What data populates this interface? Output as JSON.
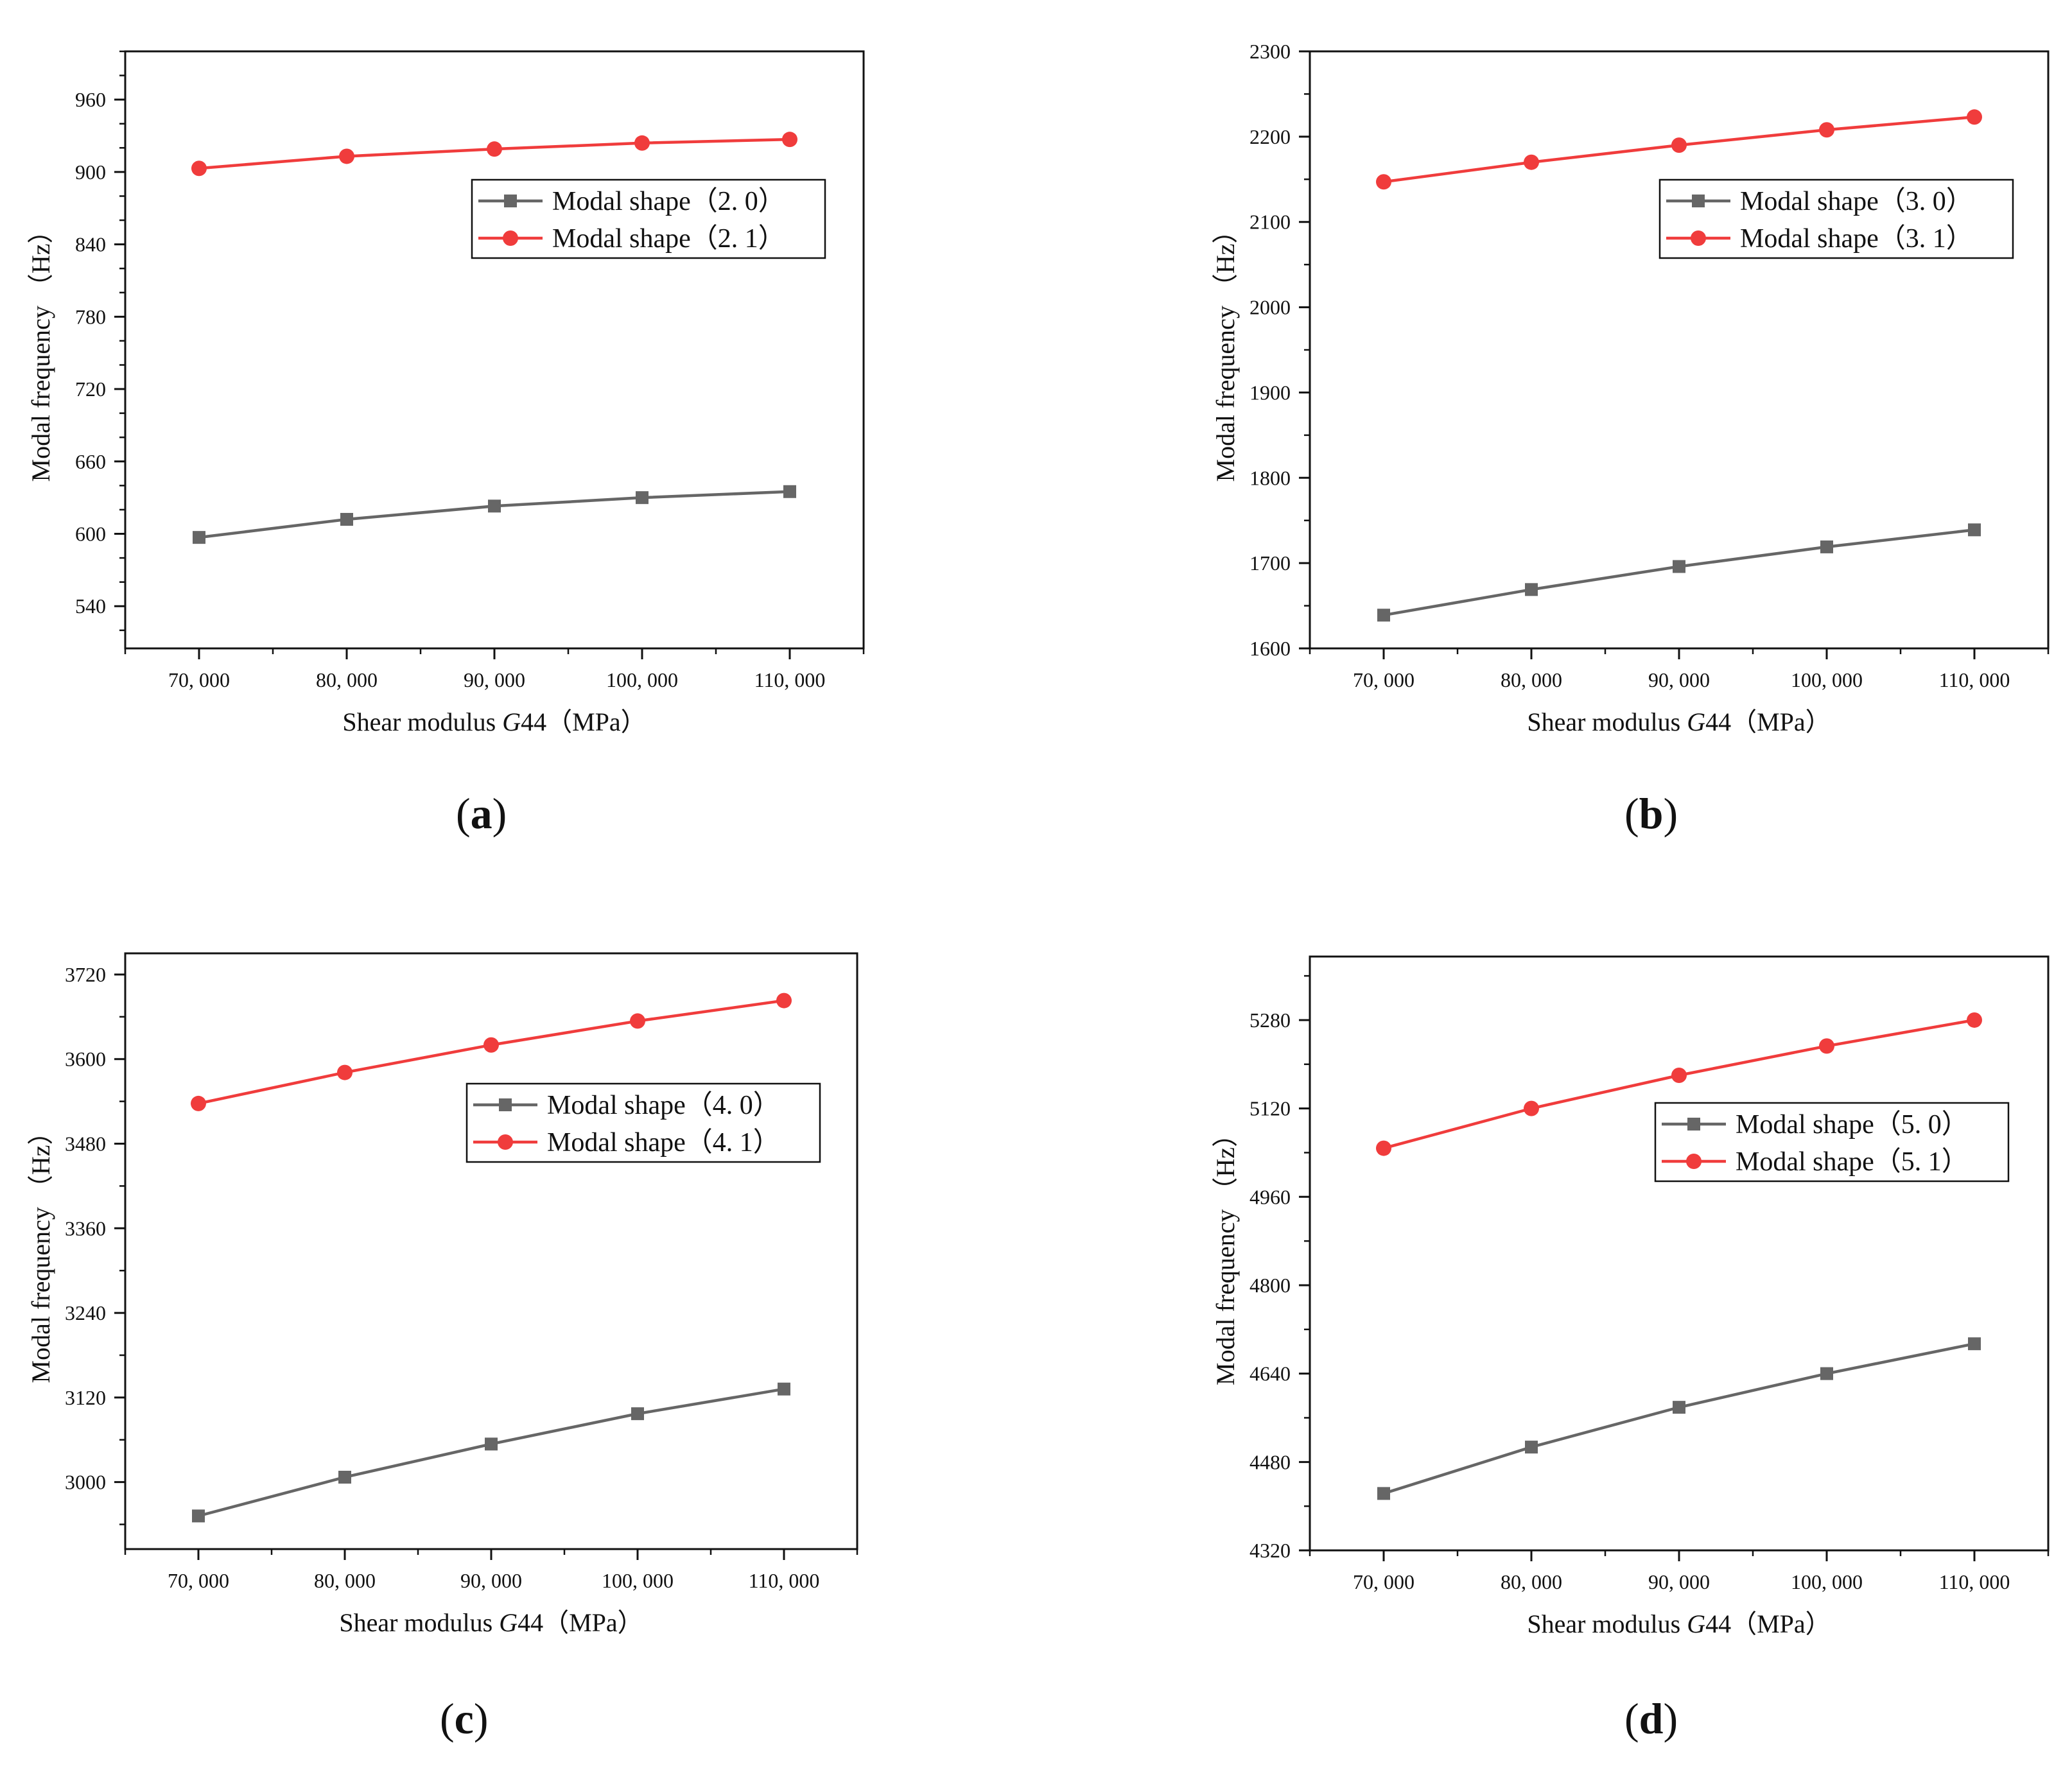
{
  "chart_data": [
    {
      "id": "a",
      "type": "line",
      "panel_label": "a",
      "xlabel_prefix": "Shear modulus ",
      "xlabel_var": "G",
      "xlabel_suffix": "44（MPa）",
      "ylabel": "Modal frequency （Hz）",
      "x": [
        70000,
        80000,
        90000,
        100000,
        110000
      ],
      "x_tick_labels": [
        "70, 000",
        "80, 000",
        "90, 000",
        "100, 000",
        "110, 000"
      ],
      "xlim": [
        65000,
        115000
      ],
      "ylim": [
        505,
        1000
      ],
      "y_ticks": [
        540,
        600,
        660,
        720,
        780,
        840,
        900,
        960
      ],
      "y_minor_step": 20,
      "legend_position": "upper-right",
      "series": [
        {
          "name": "Modal shape（2. 0）",
          "color": "#666666",
          "marker": "square",
          "values": [
            597,
            612,
            623,
            630,
            635
          ]
        },
        {
          "name": "Modal shape（2. 1）",
          "color": "#f03c3c",
          "marker": "circle",
          "values": [
            903,
            913,
            919,
            924,
            927
          ]
        }
      ]
    },
    {
      "id": "b",
      "type": "line",
      "panel_label": "b",
      "xlabel_prefix": "Shear modulus ",
      "xlabel_var": "G",
      "xlabel_suffix": "44（MPa）",
      "ylabel": "Modal frequency （Hz）",
      "x": [
        70000,
        80000,
        90000,
        100000,
        110000
      ],
      "x_tick_labels": [
        "70, 000",
        "80, 000",
        "90, 000",
        "100, 000",
        "110, 000"
      ],
      "xlim": [
        65000,
        115000
      ],
      "ylim": [
        1600,
        2300
      ],
      "y_ticks": [
        1600,
        1700,
        1800,
        1900,
        2000,
        2100,
        2200,
        2300
      ],
      "y_minor_step": 50,
      "legend_position": "upper-right",
      "series": [
        {
          "name": "Modal shape（3. 0）",
          "color": "#666666",
          "marker": "square",
          "values": [
            1639,
            1669,
            1696,
            1719,
            1739
          ]
        },
        {
          "name": "Modal shape（3. 1）",
          "color": "#f03c3c",
          "marker": "circle",
          "values": [
            2147,
            2170,
            2190,
            2208,
            2223
          ]
        }
      ]
    },
    {
      "id": "c",
      "type": "line",
      "panel_label": "c",
      "xlabel_prefix": "Shear modulus ",
      "xlabel_var": "G",
      "xlabel_suffix": "44（MPa）",
      "ylabel": "Modal frequency （Hz）",
      "x": [
        70000,
        80000,
        90000,
        100000,
        110000
      ],
      "x_tick_labels": [
        "70, 000",
        "80, 000",
        "90, 000",
        "100, 000",
        "110, 000"
      ],
      "xlim": [
        65000,
        115000
      ],
      "ylim": [
        2905,
        3750
      ],
      "y_ticks": [
        3000,
        3120,
        3240,
        3360,
        3480,
        3600,
        3720
      ],
      "y_minor_step": 60,
      "legend_position": "upper-right",
      "series": [
        {
          "name": "Modal shape（4. 0）",
          "color": "#666666",
          "marker": "square",
          "values": [
            2952,
            3007,
            3054,
            3097,
            3132
          ]
        },
        {
          "name": "Modal shape（4. 1）",
          "color": "#f03c3c",
          "marker": "circle",
          "values": [
            3537,
            3581,
            3620,
            3654,
            3683
          ]
        }
      ]
    },
    {
      "id": "d",
      "type": "line",
      "panel_label": "d",
      "xlabel_prefix": "Shear modulus ",
      "xlabel_var": "G",
      "xlabel_suffix": "44（MPa）",
      "ylabel": "Modal frequency （Hz）",
      "x": [
        70000,
        80000,
        90000,
        100000,
        110000
      ],
      "x_tick_labels": [
        "70, 000",
        "80, 000",
        "90, 000",
        "100, 000",
        "110, 000"
      ],
      "xlim": [
        65000,
        115000
      ],
      "ylim": [
        4320,
        5395
      ],
      "y_ticks": [
        4320,
        4480,
        4640,
        4800,
        4960,
        5120,
        5280
      ],
      "y_minor_step": 80,
      "legend_position": "upper-right",
      "series": [
        {
          "name": "Modal shape（5. 0）",
          "color": "#666666",
          "marker": "square",
          "values": [
            4423,
            4507,
            4579,
            4640,
            4694
          ]
        },
        {
          "name": "Modal shape（5. 1）",
          "color": "#f03c3c",
          "marker": "circle",
          "values": [
            5048,
            5120,
            5180,
            5233,
            5280
          ]
        }
      ]
    }
  ]
}
